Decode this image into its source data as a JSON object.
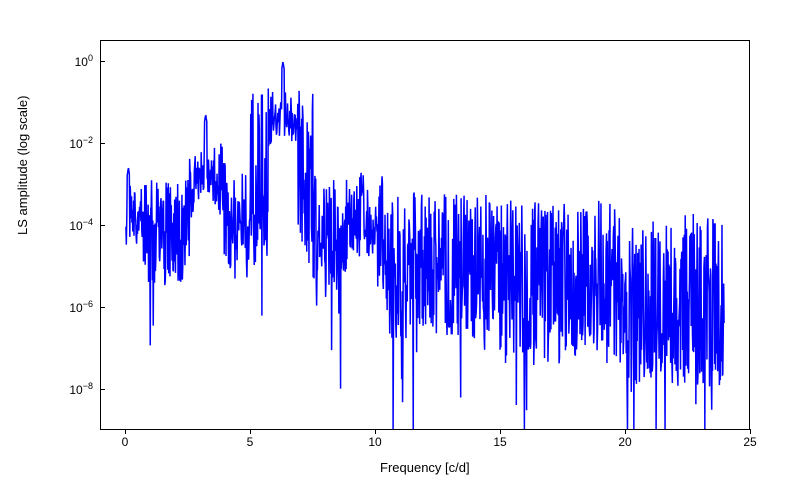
{
  "chart": {
    "type": "line",
    "xlabel": "Frequency [c/d]",
    "ylabel": "LS amplitude (log scale)",
    "label_fontsize": 13,
    "tick_fontsize": 12,
    "line_color": "#0000ff",
    "line_width": 1.5,
    "background_color": "#ffffff",
    "border_color": "#000000",
    "yscale": "log",
    "xlim": [
      -1,
      25
    ],
    "ylim_log10": [
      -9,
      0.5
    ],
    "xticks": [
      0,
      5,
      10,
      15,
      20,
      25
    ],
    "yticks_log10": [
      -8,
      -6,
      -4,
      -2,
      0
    ],
    "ytick_labels": [
      "10⁻⁸",
      "10⁻⁶",
      "10⁻⁴",
      "10⁻²",
      "10⁰"
    ],
    "peaks": [
      {
        "freq": 0.1,
        "log_amp": -2.6
      },
      {
        "freq": 3.2,
        "log_amp": -1.3
      },
      {
        "freq": 6.3,
        "log_amp": 0.0
      },
      {
        "freq": 9.5,
        "log_amp": -3.1
      }
    ],
    "baseline_segments": [
      {
        "freq_start": 0,
        "freq_end": 2.5,
        "log_amp_center": -4.2,
        "log_amp_spread": 1.3
      },
      {
        "freq_start": 2.5,
        "freq_end": 4.0,
        "log_amp_center": -3.5,
        "log_amp_spread": 1.5
      },
      {
        "freq_start": 4.0,
        "freq_end": 5.0,
        "log_amp_center": -4.0,
        "log_amp_spread": 1.4
      },
      {
        "freq_start": 5.0,
        "freq_end": 7.5,
        "log_amp_center": -2.8,
        "log_amp_spread": 2.2
      },
      {
        "freq_start": 7.5,
        "freq_end": 9.2,
        "log_amp_center": -4.2,
        "log_amp_spread": 1.4
      },
      {
        "freq_start": 9.2,
        "freq_end": 10.5,
        "log_amp_center": -4.3,
        "log_amp_spread": 1.6
      },
      {
        "freq_start": 10.5,
        "freq_end": 15,
        "log_amp_center": -5.0,
        "log_amp_spread": 1.8
      },
      {
        "freq_start": 15,
        "freq_end": 20,
        "log_amp_center": -5.4,
        "log_amp_spread": 2.0
      },
      {
        "freq_start": 20,
        "freq_end": 24,
        "log_amp_center": -5.8,
        "log_amp_spread": 2.2
      }
    ],
    "freq_max": 24.0,
    "npoints": 1400,
    "seed": 42
  }
}
